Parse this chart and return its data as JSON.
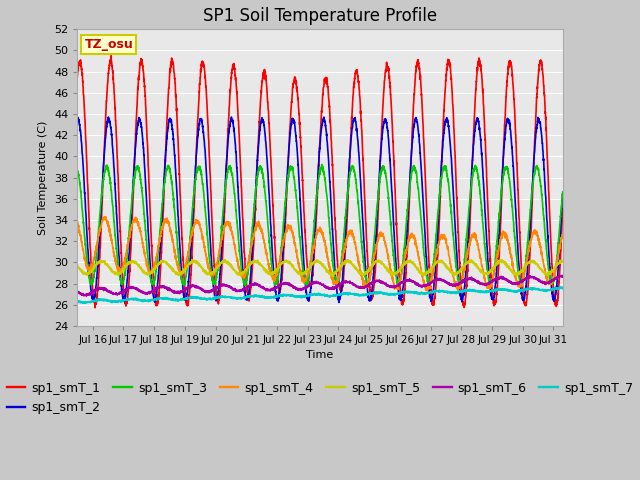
{
  "title": "SP1 Soil Temperature Profile",
  "xlabel": "Time",
  "ylabel": "Soil Temperature (C)",
  "ylim": [
    24,
    52
  ],
  "yticks": [
    24,
    26,
    28,
    30,
    32,
    34,
    36,
    38,
    40,
    42,
    44,
    46,
    48,
    50,
    52
  ],
  "xlim_days": [
    15.5,
    31.3
  ],
  "xtick_positions": [
    16,
    17,
    18,
    19,
    20,
    21,
    22,
    23,
    24,
    25,
    26,
    27,
    28,
    29,
    30,
    31
  ],
  "xtick_labels": [
    "Jul 16",
    "Jul 17",
    "Jul 18",
    "Jul 19",
    "Jul 20",
    "Jul 21",
    "Jul 22",
    "Jul 23",
    "Jul 24",
    "Jul 25",
    "Jul 26",
    "Jul 27",
    "Jul 28",
    "Jul 29",
    "Jul 30",
    "Jul 31"
  ],
  "series_colors": [
    "#ff0000",
    "#0000dd",
    "#00cc00",
    "#ff8800",
    "#cccc00",
    "#aa00aa",
    "#00cccc"
  ],
  "series_labels": [
    "sp1_smT_1",
    "sp1_smT_2",
    "sp1_smT_3",
    "sp1_smT_4",
    "sp1_smT_5",
    "sp1_smT_6",
    "sp1_smT_7"
  ],
  "annotation_text": "TZ_osu",
  "annotation_color": "#cc0000",
  "annotation_bg": "#ffffcc",
  "annotation_border": "#cccc00",
  "fig_bg_color": "#c8c8c8",
  "plot_bg_color": "#e8e8e8",
  "grid_color": "#ffffff",
  "linewidth": 1.2,
  "legend_fontsize": 9,
  "title_fontsize": 12
}
